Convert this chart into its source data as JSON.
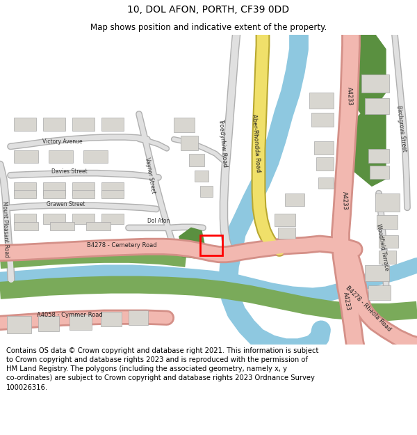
{
  "title_line1": "10, DOL AFON, PORTH, CF39 0DD",
  "title_line2": "Map shows position and indicative extent of the property.",
  "footer_text": "Contains OS data © Crown copyright and database right 2021. This information is subject\nto Crown copyright and database rights 2023 and is reproduced with the permission of\nHM Land Registry. The polygons (including the associated geometry, namely x, y\nco-ordinates) are subject to Crown copyright and database rights 2023 Ordnance Survey\n100026316.",
  "fig_width": 6.0,
  "fig_height": 6.25,
  "dpi": 100,
  "title_fontsize": 10,
  "subtitle_fontsize": 8.5,
  "footer_fontsize": 7.2
}
